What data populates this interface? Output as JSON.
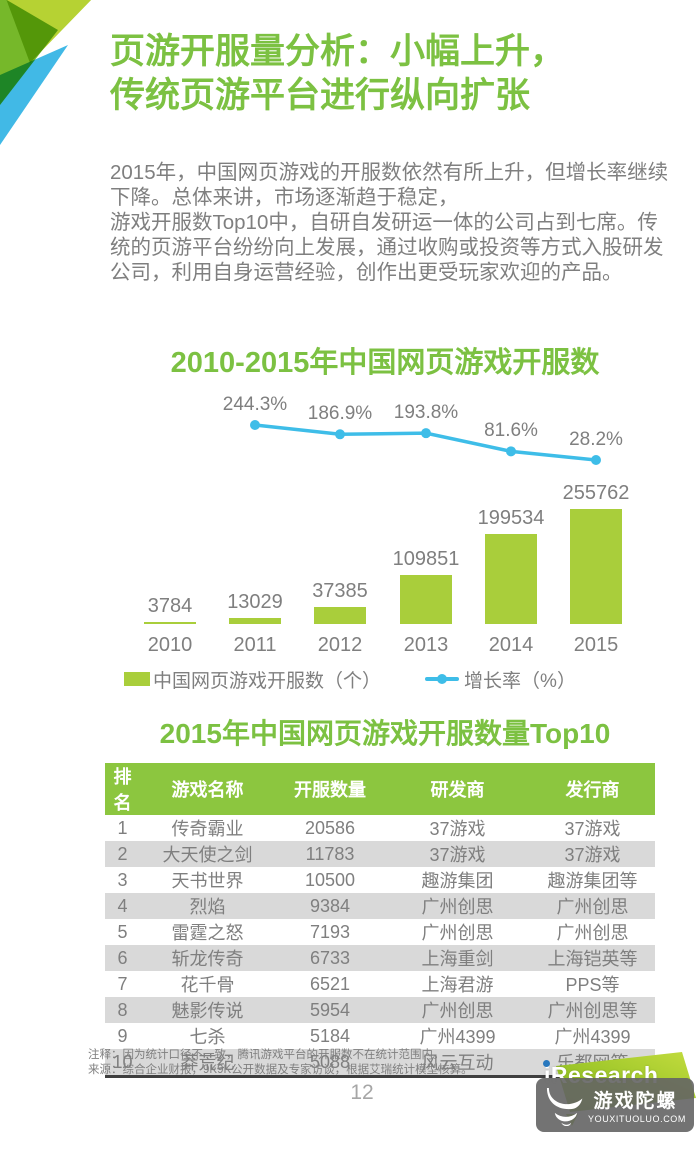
{
  "header": {
    "title_line1": "页游开服量分析：小幅上升，",
    "title_line2": "传统页游平台进行纵向扩张"
  },
  "body": {
    "paragraph1": "2015年，中国网页游戏的开服数依然有所上升，但增长率继续下降。总体来讲，市场逐渐趋于稳定，",
    "paragraph2": "游戏开服数Top10中，自研自发研运一体的公司占到七席。传统的页游平台纷纷向上发展，通过收购或投资等方式入股研发公司，利用自身运营经验，创作出更受玩家欢迎的产品。"
  },
  "chart_data": {
    "type": "combo",
    "title": "2010-2015年中国网页游戏开服数",
    "categories": [
      "2010",
      "2011",
      "2012",
      "2013",
      "2014",
      "2015"
    ],
    "series": [
      {
        "name": "中国网页游戏开服数（个）",
        "chart_type": "bar",
        "values": [
          3784,
          13029,
          37385,
          109851,
          199534,
          255762
        ],
        "color": "#a9ce3b"
      },
      {
        "name": "增长率（%）",
        "chart_type": "line",
        "values": [
          null,
          244.3,
          186.9,
          193.8,
          81.6,
          28.2
        ],
        "labels": [
          "",
          "244.3%",
          "186.9%",
          "193.8%",
          "81.6%",
          "28.2%"
        ],
        "color": "#3ebde8"
      }
    ],
    "legend_position": "bottom",
    "value_labels_shown": true
  },
  "table": {
    "title": "2015年中国网页游戏开服数量Top10",
    "columns": [
      "排名",
      "游戏名称",
      "开服数量",
      "研发商",
      "发行商"
    ],
    "rows": [
      [
        "1",
        "传奇霸业",
        "20586",
        "37游戏",
        "37游戏"
      ],
      [
        "2",
        "大天使之剑",
        "11783",
        "37游戏",
        "37游戏"
      ],
      [
        "3",
        "天书世界",
        "10500",
        "趣游集团",
        "趣游集团等"
      ],
      [
        "4",
        "烈焰",
        "9384",
        "广州创思",
        "广州创思"
      ],
      [
        "5",
        "雷霆之怒",
        "7193",
        "广州创思",
        "广州创思"
      ],
      [
        "6",
        "斩龙传奇",
        "6733",
        "上海重剑",
        "上海铠英等"
      ],
      [
        "7",
        "花千骨",
        "6521",
        "上海君游",
        "PPS等"
      ],
      [
        "8",
        "魅影传说",
        "5954",
        "广州创思",
        "广州创思等"
      ],
      [
        "9",
        "七杀",
        "5184",
        "广州4399",
        "广州4399"
      ],
      [
        "10",
        "莽荒纪",
        "5088",
        "风云互动",
        "乐都网等"
      ]
    ],
    "header_bg": "#8cc63f",
    "stripe_color": "#d9d9d9"
  },
  "footnote": {
    "note": "注释：因为统计口径不一致，腾讯游戏平台的开服数不在统计范围内。",
    "source": "来源：综合企业财报，9K9K公开数据及专家访谈，根据艾瑞统计模型核算。"
  },
  "footer": {
    "page_number": "12"
  },
  "logos": {
    "iresearch": {
      "i": "i",
      "rest": "Research"
    },
    "watermark": {
      "title": "游戏陀螺",
      "url": "YOUXITUOLUO.COM"
    }
  },
  "colors": {
    "title_green": "#7cc142",
    "bar_green": "#a9ce3b",
    "line_blue": "#3ebde8",
    "table_header_green": "#8cc63f",
    "text_gray": "#7f7f7f"
  }
}
